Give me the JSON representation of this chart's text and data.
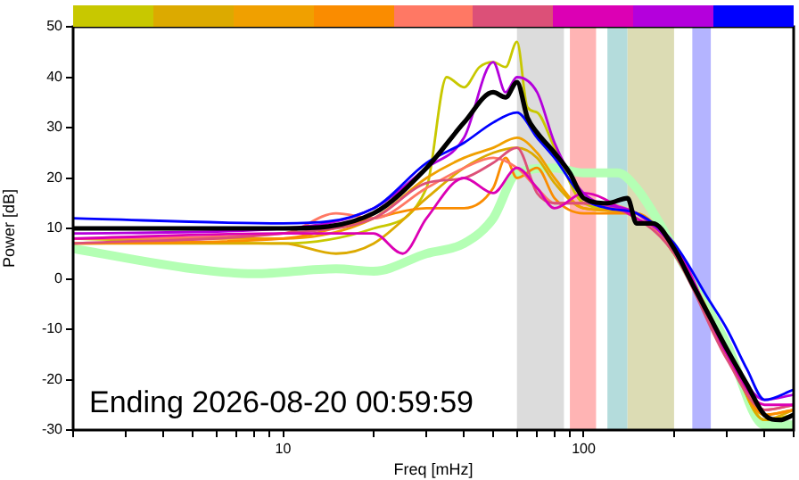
{
  "chart_data": {
    "type": "line",
    "xlabel": "Freq [mHz]",
    "ylabel": "Power [dB]",
    "log": "x",
    "grid": false,
    "legend": false,
    "xlim": [
      2,
      500
    ],
    "xticks": [
      {
        "value": 2,
        "label": null
      },
      {
        "value": 3,
        "label": null
      },
      {
        "value": 4,
        "label": null
      },
      {
        "value": 5,
        "label": null
      },
      {
        "value": 6,
        "label": null
      },
      {
        "value": 7,
        "label": null
      },
      {
        "value": 8,
        "label": null
      },
      {
        "value": 9,
        "label": null
      },
      10,
      {
        "value": 20,
        "label": null
      },
      {
        "value": 30,
        "label": null
      },
      {
        "value": 40,
        "label": null
      },
      {
        "value": 50,
        "label": null
      },
      {
        "value": 60,
        "label": null
      },
      {
        "value": 70,
        "label": null
      },
      {
        "value": 80,
        "label": null
      },
      {
        "value": 90,
        "label": null
      },
      100,
      {
        "value": 200,
        "label": null
      },
      {
        "value": 300,
        "label": null
      },
      {
        "value": 400,
        "label": null
      },
      {
        "value": 500,
        "label": null
      }
    ],
    "ylim": [
      -30,
      50
    ],
    "yticks": [
      -30,
      -20,
      -10,
      0,
      10,
      20,
      30,
      40,
      50
    ],
    "bands": [
      {
        "axis": "x",
        "from": 60,
        "to": 86,
        "color": "#dcdcdc"
      },
      {
        "axis": "x",
        "from": 90,
        "to": 110,
        "color": "#ffb4b4"
      },
      {
        "axis": "x",
        "from": 120,
        "to": 140,
        "color": "#b4dcdc"
      },
      {
        "axis": "x",
        "from": 140,
        "to": 200,
        "color": "#dcdcb4"
      },
      {
        "axis": "x",
        "from": 230,
        "to": 265,
        "color": "#b4b4ff"
      }
    ],
    "annotations": [
      "Ending 2026-08-20 00:59:59"
    ],
    "series": [
      {
        "color": "#c8c800",
        "x": [
          2,
          10,
          20,
          30,
          35,
          40,
          45,
          50,
          55,
          60,
          65,
          70,
          80,
          100,
          150,
          200,
          300,
          400,
          500
        ],
        "values": [
          8,
          7,
          10,
          18,
          40,
          38,
          42,
          43,
          42,
          47,
          34,
          33,
          26,
          15,
          13,
          6,
          -14,
          -28,
          -27
        ]
      },
      {
        "color": "#dcaa00",
        "x": [
          2,
          10,
          15,
          20,
          30,
          40,
          50,
          60,
          70,
          80,
          100,
          150,
          200,
          300,
          400,
          500
        ],
        "values": [
          7,
          7,
          5,
          7,
          16,
          22,
          25,
          26,
          24,
          19,
          14,
          13,
          5,
          -14,
          -28,
          -26
        ]
      },
      {
        "color": "#f0a000",
        "x": [
          2,
          10,
          20,
          30,
          40,
          50,
          60,
          70,
          80,
          100,
          150,
          200,
          300,
          400,
          500
        ],
        "values": [
          8,
          8,
          12,
          20,
          24,
          26,
          28,
          25,
          20,
          14,
          13,
          6,
          -14,
          -27,
          -26
        ]
      },
      {
        "color": "#fa8c00",
        "x": [
          2,
          10,
          20,
          30,
          40,
          50,
          55,
          60,
          70,
          80,
          100,
          150,
          200,
          300,
          400,
          500
        ],
        "values": [
          7,
          8,
          12,
          14,
          14,
          18,
          24,
          20,
          22,
          16,
          13,
          13,
          5,
          -15,
          -27,
          -26
        ]
      },
      {
        "color": "#ff7864",
        "x": [
          2,
          10,
          15,
          20,
          30,
          40,
          50,
          60,
          70,
          80,
          100,
          150,
          200,
          300,
          400,
          500
        ],
        "values": [
          8,
          9,
          13,
          12,
          18,
          22,
          24,
          22,
          18,
          15,
          15,
          13,
          5,
          -15,
          -26,
          -25
        ]
      },
      {
        "color": "#dc5078",
        "x": [
          2,
          10,
          20,
          30,
          40,
          50,
          60,
          70,
          80,
          100,
          150,
          200,
          300,
          400,
          500
        ],
        "values": [
          7,
          9,
          12,
          19,
          20,
          23,
          26,
          17,
          15,
          15,
          12,
          5,
          -16,
          -26,
          -25
        ]
      },
      {
        "color": "#dc00b4",
        "x": [
          2,
          10,
          20,
          25,
          30,
          40,
          50,
          60,
          70,
          80,
          100,
          150,
          200,
          300,
          400,
          500
        ],
        "values": [
          8,
          9,
          9,
          5,
          12,
          20,
          17,
          22,
          18,
          14,
          17,
          12,
          7,
          -15,
          -25,
          -25
        ]
      },
      {
        "color": "#b400dc",
        "x": [
          2,
          10,
          20,
          30,
          40,
          50,
          55,
          60,
          70,
          80,
          100,
          150,
          200,
          300,
          400,
          500
        ],
        "values": [
          9,
          10,
          14,
          22,
          28,
          43,
          37,
          40,
          37,
          27,
          17,
          13,
          6,
          -14,
          -24,
          -23
        ]
      },
      {
        "color": "#0000ff",
        "x": [
          2,
          10,
          20,
          30,
          40,
          50,
          60,
          70,
          80,
          100,
          120,
          150,
          200,
          260,
          300,
          350,
          400,
          500
        ],
        "values": [
          12,
          11,
          14,
          23,
          27,
          31,
          33,
          28,
          24,
          16,
          14,
          13,
          7,
          -4,
          -10,
          -18,
          -24,
          -22
        ]
      },
      {
        "color": "#b4ffb4",
        "x": [
          2,
          5,
          8,
          15,
          20,
          30,
          40,
          50,
          60,
          80,
          100,
          130,
          150,
          200,
          300,
          400,
          500
        ],
        "values": [
          6,
          2,
          1,
          2,
          1.5,
          5,
          7,
          12,
          21,
          22,
          21,
          21,
          18,
          6,
          -13,
          -29,
          -29
        ]
      },
      {
        "color": "#000000",
        "x": [
          2,
          10,
          20,
          30,
          40,
          50,
          55,
          60,
          65,
          70,
          80,
          90,
          100,
          120,
          140,
          150,
          170,
          200,
          230,
          260,
          300,
          350,
          400,
          450,
          500
        ],
        "values": [
          10,
          10,
          13,
          22,
          31,
          37,
          36,
          39,
          32,
          29,
          25,
          21,
          16,
          15,
          16,
          11,
          11,
          6,
          -1,
          -7,
          -14,
          -21,
          -27,
          -28,
          -27
        ]
      }
    ]
  }
}
